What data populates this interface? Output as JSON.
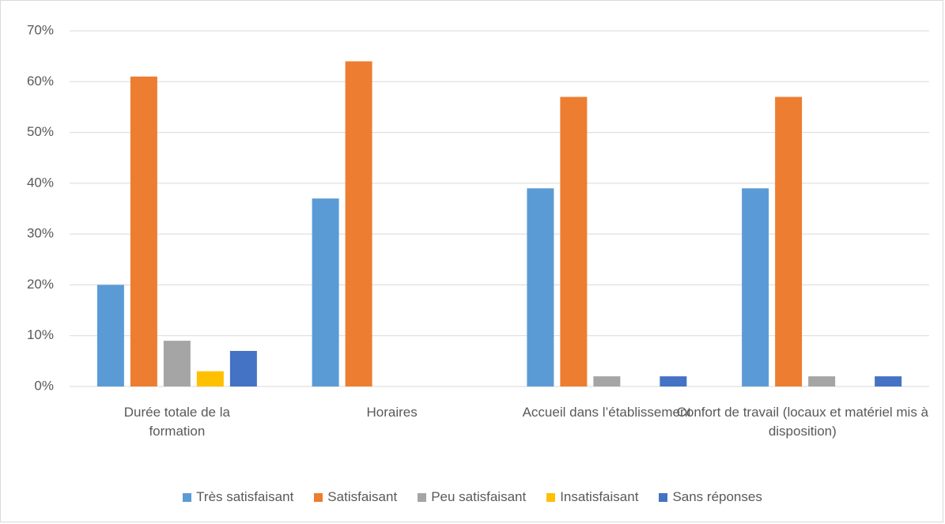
{
  "chart_data": {
    "type": "bar",
    "categories": [
      "Durée totale de la formation",
      "Horaires",
      "Accueil dans l’établissement",
      "Confort de travail (locaux et matériel mis à disposition)"
    ],
    "series": [
      {
        "name": "Très satisfaisant",
        "color": "#5b9bd5",
        "values": [
          20,
          37,
          39,
          39
        ]
      },
      {
        "name": "Satisfaisant",
        "color": "#ed7d31",
        "values": [
          61,
          64,
          57,
          57
        ]
      },
      {
        "name": "Peu satisfaisant",
        "color": "#a5a5a5",
        "values": [
          9,
          0,
          2,
          2
        ]
      },
      {
        "name": "Insatisfaisant",
        "color": "#ffc000",
        "values": [
          3,
          0,
          0,
          0
        ]
      },
      {
        "name": "Sans réponses",
        "color": "#4472c4",
        "values": [
          7,
          0,
          2,
          2
        ]
      }
    ],
    "ylim": [
      0,
      70
    ],
    "yticks": [
      {
        "value": 0,
        "label": "0%"
      },
      {
        "value": 10,
        "label": "10%"
      },
      {
        "value": 20,
        "label": "20%"
      },
      {
        "value": 30,
        "label": "30%"
      },
      {
        "value": 40,
        "label": "40%"
      },
      {
        "value": 50,
        "label": "50%"
      },
      {
        "value": 60,
        "label": "60%"
      },
      {
        "value": 70,
        "label": "70%"
      }
    ],
    "grid": true,
    "legend": "bottom"
  }
}
